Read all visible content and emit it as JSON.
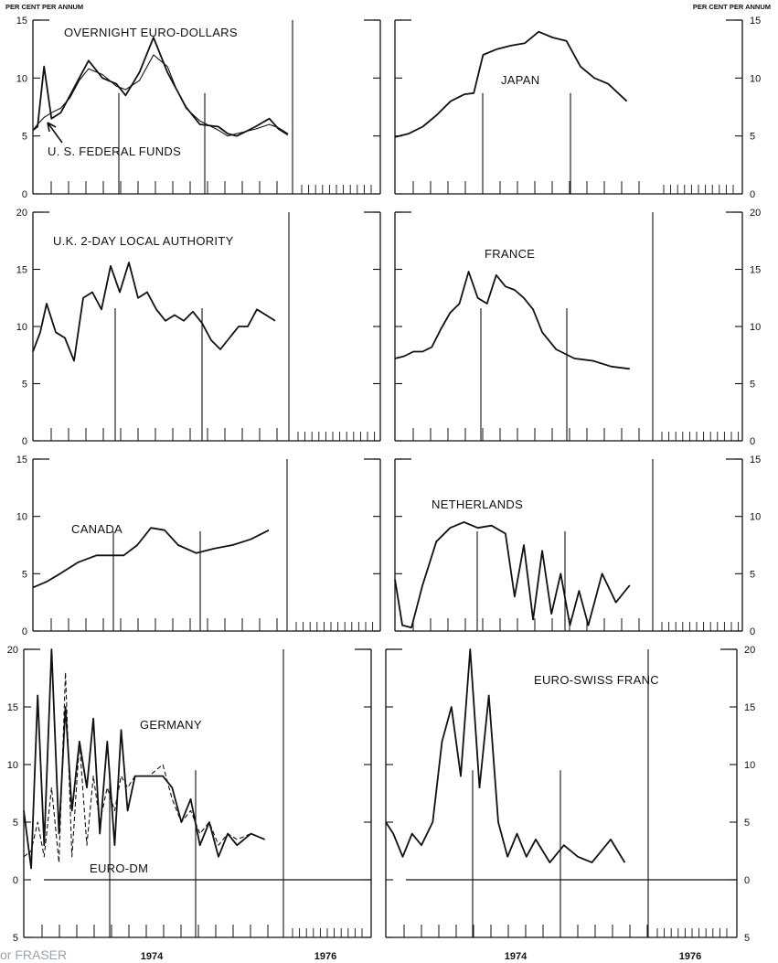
{
  "header": {
    "left_unit": "PER CENT PER ANNUM",
    "right_unit": "PER CENT PER ANNUM"
  },
  "footer": {
    "x_labels": [
      "1974",
      "1976",
      "1974",
      "1976"
    ],
    "source_text": "or FRASER"
  },
  "chart_data": [
    {
      "type": "line",
      "title": "OVERNIGHT EURO-DOLLARS",
      "ylim": [
        0,
        15
      ],
      "yticks": [
        0,
        5,
        10,
        15
      ],
      "tick_labels": [
        "0",
        "5",
        "10",
        "15"
      ],
      "annotations": [
        "U. S. FEDERAL FUNDS"
      ],
      "x": [
        1973.0,
        1973.05,
        1973.12,
        1973.2,
        1973.3,
        1973.4,
        1973.5,
        1973.6,
        1973.75,
        1973.9,
        1974.0,
        1974.15,
        1974.3,
        1974.45,
        1974.55,
        1974.65,
        1974.8,
        1975.0,
        1975.1,
        1975.2,
        1975.4,
        1975.55,
        1975.65,
        1975.75
      ],
      "series": [
        {
          "name": "OVERNIGHT EURO-DOLLARS",
          "values": [
            5.5,
            5.8,
            11.0,
            6.5,
            7.0,
            8.5,
            10.0,
            11.5,
            10.0,
            9.5,
            8.5,
            10.5,
            13.5,
            10.5,
            9.0,
            7.5,
            6.0,
            5.8,
            5.2,
            5.0,
            5.8,
            6.5,
            5.6,
            5.1
          ]
        },
        {
          "name": "U. S. FEDERAL FUNDS",
          "values": [
            5.5,
            6.0,
            6.6,
            7.0,
            7.4,
            8.3,
            9.8,
            10.8,
            10.3,
            9.3,
            9.0,
            9.8,
            12.0,
            11.0,
            9.0,
            7.4,
            6.3,
            5.5,
            5.0,
            5.2,
            5.6,
            6.0,
            5.7,
            5.2
          ]
        }
      ]
    },
    {
      "type": "line",
      "title": "JAPAN",
      "ylim": [
        0,
        15
      ],
      "yticks": [
        0,
        5,
        10,
        15
      ],
      "tick_labels": [
        "0",
        "5",
        "10",
        "15"
      ],
      "series": [
        {
          "values": [
            4.9,
            5.2,
            5.8,
            6.8,
            8.0,
            8.6,
            8.7,
            12.0,
            12.5,
            12.8,
            13.0,
            14.0,
            13.5,
            13.2,
            11.0,
            10.0,
            9.5,
            8.0
          ]
        }
      ],
      "x": [
        1973.0,
        1973.15,
        1973.3,
        1973.45,
        1973.6,
        1973.75,
        1973.85,
        1973.95,
        1974.1,
        1974.25,
        1974.4,
        1974.55,
        1974.7,
        1974.85,
        1975.0,
        1975.15,
        1975.3,
        1975.5
      ]
    },
    {
      "type": "line",
      "title": "U.K. 2-DAY LOCAL AUTHORITY",
      "ylim": [
        0,
        20
      ],
      "yticks": [
        0,
        5,
        10,
        15,
        20
      ],
      "tick_labels": [
        "0",
        "5",
        "10",
        "15",
        "20"
      ],
      "series": [
        {
          "values": [
            7.8,
            9.5,
            12.0,
            9.5,
            9.0,
            7.0,
            12.5,
            13.0,
            11.5,
            15.3,
            13.0,
            15.6,
            12.5,
            13.0,
            11.5,
            10.5,
            11.0,
            10.5,
            11.3,
            10.3,
            8.8,
            8.0,
            9.0,
            10.0,
            10.0,
            11.5,
            11.0,
            10.5
          ]
        }
      ],
      "x": [
        1973.0,
        1973.08,
        1973.15,
        1973.25,
        1973.35,
        1973.45,
        1973.55,
        1973.65,
        1973.75,
        1973.85,
        1973.95,
        1974.05,
        1974.15,
        1974.25,
        1974.35,
        1974.45,
        1974.55,
        1974.65,
        1974.75,
        1974.85,
        1974.95,
        1975.05,
        1975.15,
        1975.25,
        1975.35,
        1975.45,
        1975.55,
        1975.65
      ]
    },
    {
      "type": "line",
      "title": "FRANCE",
      "ylim": [
        0,
        20
      ],
      "yticks": [
        0,
        5,
        10,
        15,
        20
      ],
      "tick_labels": [
        "0",
        "5",
        "10",
        "15",
        "20"
      ],
      "series": [
        {
          "values": [
            7.2,
            7.4,
            7.8,
            7.8,
            8.2,
            9.8,
            11.2,
            12.0,
            14.8,
            12.5,
            12.0,
            14.5,
            13.5,
            13.2,
            12.5,
            11.5,
            9.5,
            8.0,
            7.2,
            7.0,
            6.5,
            6.3
          ]
        }
      ],
      "x": [
        1973.0,
        1973.1,
        1973.2,
        1973.3,
        1973.4,
        1973.5,
        1973.6,
        1973.7,
        1973.8,
        1973.9,
        1974.0,
        1974.1,
        1974.2,
        1974.3,
        1974.4,
        1974.5,
        1974.6,
        1974.75,
        1974.95,
        1975.15,
        1975.35,
        1975.55
      ]
    },
    {
      "type": "line",
      "title": "CANADA",
      "ylim": [
        0,
        15
      ],
      "yticks": [
        0,
        5,
        10,
        15
      ],
      "tick_labels": [
        "0",
        "5",
        "10",
        "15"
      ],
      "series": [
        {
          "values": [
            3.8,
            4.3,
            5.0,
            6.0,
            6.6,
            6.6,
            6.6,
            7.5,
            9.0,
            8.8,
            7.5,
            6.8,
            7.2,
            7.5,
            8.0,
            8.8
          ]
        }
      ],
      "x": [
        1973.0,
        1973.15,
        1973.3,
        1973.5,
        1973.7,
        1973.85,
        1974.0,
        1974.15,
        1974.3,
        1974.45,
        1974.6,
        1974.8,
        1975.0,
        1975.2,
        1975.4,
        1975.6
      ]
    },
    {
      "type": "line",
      "title": "NETHERLANDS",
      "ylim": [
        0,
        15
      ],
      "yticks": [
        0,
        5,
        10,
        15
      ],
      "tick_labels": [
        "0",
        "5",
        "10",
        "15"
      ],
      "series": [
        {
          "values": [
            4.5,
            0.5,
            0.3,
            4.0,
            7.8,
            9.0,
            9.5,
            9.0,
            9.2,
            8.5,
            3.0,
            7.5,
            1.0,
            7.0,
            1.5,
            5.0,
            0.5,
            3.5,
            0.5,
            5.0,
            2.5,
            4.0
          ]
        }
      ],
      "x": [
        1973.0,
        1973.08,
        1973.18,
        1973.3,
        1973.45,
        1973.6,
        1973.75,
        1973.9,
        1974.05,
        1974.2,
        1974.3,
        1974.4,
        1974.5,
        1974.6,
        1974.7,
        1974.8,
        1974.9,
        1975.0,
        1975.1,
        1975.25,
        1975.4,
        1975.55
      ]
    },
    {
      "type": "line",
      "title": "GERMANY",
      "ylim": [
        -5,
        20
      ],
      "yticks": [
        -5,
        0,
        5,
        10,
        15,
        20
      ],
      "tick_labels": [
        "5",
        "0",
        "5",
        "10",
        "15",
        "20"
      ],
      "annotations": [
        "EURO-DM"
      ],
      "x": [
        1973.0,
        1973.08,
        1973.15,
        1973.22,
        1973.3,
        1973.38,
        1973.45,
        1973.52,
        1973.6,
        1973.68,
        1973.75,
        1973.82,
        1973.9,
        1973.98,
        1974.05,
        1974.12,
        1974.2,
        1974.35,
        1974.5,
        1974.6,
        1974.7,
        1974.8,
        1974.9,
        1975.0,
        1975.1,
        1975.2,
        1975.3,
        1975.45,
        1975.6
      ],
      "series": [
        {
          "name": "GERMANY",
          "values": [
            6.0,
            1.0,
            16.0,
            3.0,
            20.0,
            4.0,
            15.0,
            6.0,
            12.0,
            8.0,
            14.0,
            4.0,
            12.0,
            3.0,
            13.0,
            6.0,
            9.0,
            9.0,
            9.0,
            8.0,
            5.0,
            7.0,
            3.0,
            5.0,
            2.0,
            4.0,
            3.0,
            4.0,
            3.5
          ]
        },
        {
          "name": "EURO-DM",
          "values": [
            2.0,
            2.5,
            5.0,
            2.0,
            8.0,
            1.5,
            18.0,
            2.0,
            12.0,
            3.0,
            9.0,
            5.0,
            8.0,
            6.0,
            9.0,
            8.0,
            9.0,
            9.0,
            10.0,
            7.0,
            5.0,
            6.0,
            4.0,
            5.0,
            3.0,
            4.0,
            3.5,
            4.0,
            3.5
          ]
        }
      ]
    },
    {
      "type": "line",
      "title": "EURO-SWISS FRANC",
      "ylim": [
        -5,
        20
      ],
      "yticks": [
        -5,
        0,
        5,
        10,
        15,
        20
      ],
      "tick_labels": [
        "5",
        "0",
        "5",
        "10",
        "15",
        "20"
      ],
      "series": [
        {
          "values": [
            5.0,
            4.0,
            2.0,
            4.0,
            3.0,
            5.0,
            12.0,
            15.0,
            9.0,
            20.0,
            8.0,
            16.0,
            5.0,
            2.0,
            4.0,
            2.0,
            3.5,
            1.5,
            3.0,
            2.0,
            1.5,
            3.5,
            1.5
          ]
        }
      ],
      "x": [
        1973.0,
        1973.08,
        1973.18,
        1973.28,
        1973.38,
        1973.5,
        1973.6,
        1973.7,
        1973.8,
        1973.9,
        1974.0,
        1974.1,
        1974.2,
        1974.3,
        1974.4,
        1974.5,
        1974.6,
        1974.75,
        1974.9,
        1975.05,
        1975.2,
        1975.4,
        1975.55
      ]
    }
  ]
}
